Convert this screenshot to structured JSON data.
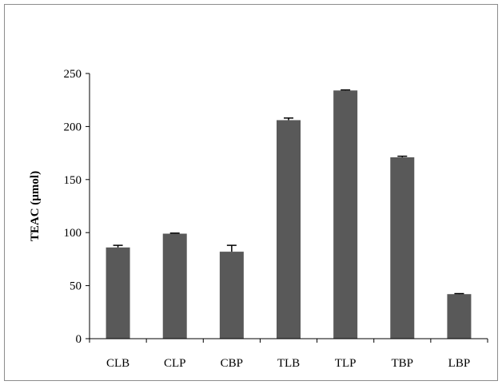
{
  "chart_data": {
    "type": "bar",
    "title": "",
    "xlabel": "",
    "ylabel": "TEAC (µmol)",
    "categories": [
      "CLB",
      "CLP",
      "CBP",
      "TLB",
      "TLP",
      "TBP",
      "LBP"
    ],
    "values": [
      86,
      99,
      82,
      206,
      234,
      171,
      42
    ],
    "error": [
      2,
      0.5,
      6,
      2,
      0.5,
      1,
      0.5
    ],
    "ylim": [
      0,
      250
    ],
    "yticks": [
      0,
      50,
      100,
      150,
      200,
      250
    ],
    "grid": false,
    "legend": "none",
    "colors": {
      "bar": "#595959",
      "error_bar": "#000000",
      "axis": "#000000",
      "border": "#8c8c8c"
    }
  }
}
